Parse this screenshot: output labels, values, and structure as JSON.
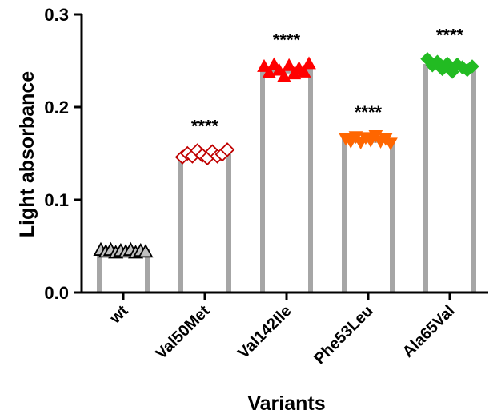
{
  "chart_data": {
    "type": "bar",
    "title": "",
    "xlabel": "Variants",
    "ylabel": "Light absorbance",
    "ylim": [
      0,
      0.3
    ],
    "yticks": [
      "0.0",
      "0.1",
      "0.2",
      "0.3"
    ],
    "ytick_values": [
      0,
      0.1,
      0.2,
      0.3
    ],
    "grid": false,
    "legend": "none",
    "categories": [
      "wt",
      "Val50Met",
      "Val142Ile",
      "Phe53Leu",
      "Ala65Val"
    ],
    "values": [
      0.044,
      0.148,
      0.239,
      0.164,
      0.244
    ],
    "significance": [
      "",
      "****",
      "****",
      "****",
      "****"
    ],
    "bar_fill": "#ffffff",
    "bar_edge": "#a6a6a6",
    "marker_colors": [
      "#7f7f7f",
      "#c00000",
      "#ff0000",
      "#ff6600",
      "#22bb22"
    ],
    "marker_shapes": [
      "triangle-up-open",
      "diamond-open",
      "triangle-up",
      "triangle-down",
      "diamond"
    ],
    "points": [
      [
        0.046,
        0.044,
        0.046,
        0.043,
        0.045,
        0.044,
        0.046,
        0.043,
        0.045,
        0.044
      ],
      [
        0.146,
        0.15,
        0.147,
        0.153,
        0.148,
        0.145,
        0.152,
        0.147,
        0.149,
        0.154
      ],
      [
        0.244,
        0.237,
        0.246,
        0.24,
        0.233,
        0.245,
        0.236,
        0.242,
        0.238,
        0.247
      ],
      [
        0.166,
        0.163,
        0.168,
        0.162,
        0.167,
        0.164,
        0.169,
        0.163,
        0.166,
        0.161
      ],
      [
        0.252,
        0.245,
        0.249,
        0.241,
        0.247,
        0.238,
        0.246,
        0.243,
        0.24,
        0.244
      ]
    ]
  }
}
